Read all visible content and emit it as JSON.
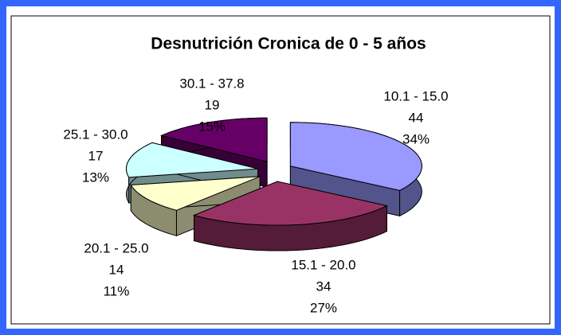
{
  "chart_data": {
    "type": "pie3d",
    "title": "Desnutrición Cronica de 0 - 5 años",
    "categories": [
      "10.1 - 15.0",
      "15.1 - 20.0",
      "20.1 - 25.0",
      "25.1 - 30.0",
      "30.1 - 37.8"
    ],
    "values": [
      44,
      34,
      14,
      17,
      19
    ],
    "percent_labels": [
      "34%",
      "27%",
      "11%",
      "13%",
      "15%"
    ],
    "colors": [
      "#9999ff",
      "#993366",
      "#ffffcc",
      "#ccffff",
      "#660066"
    ]
  }
}
